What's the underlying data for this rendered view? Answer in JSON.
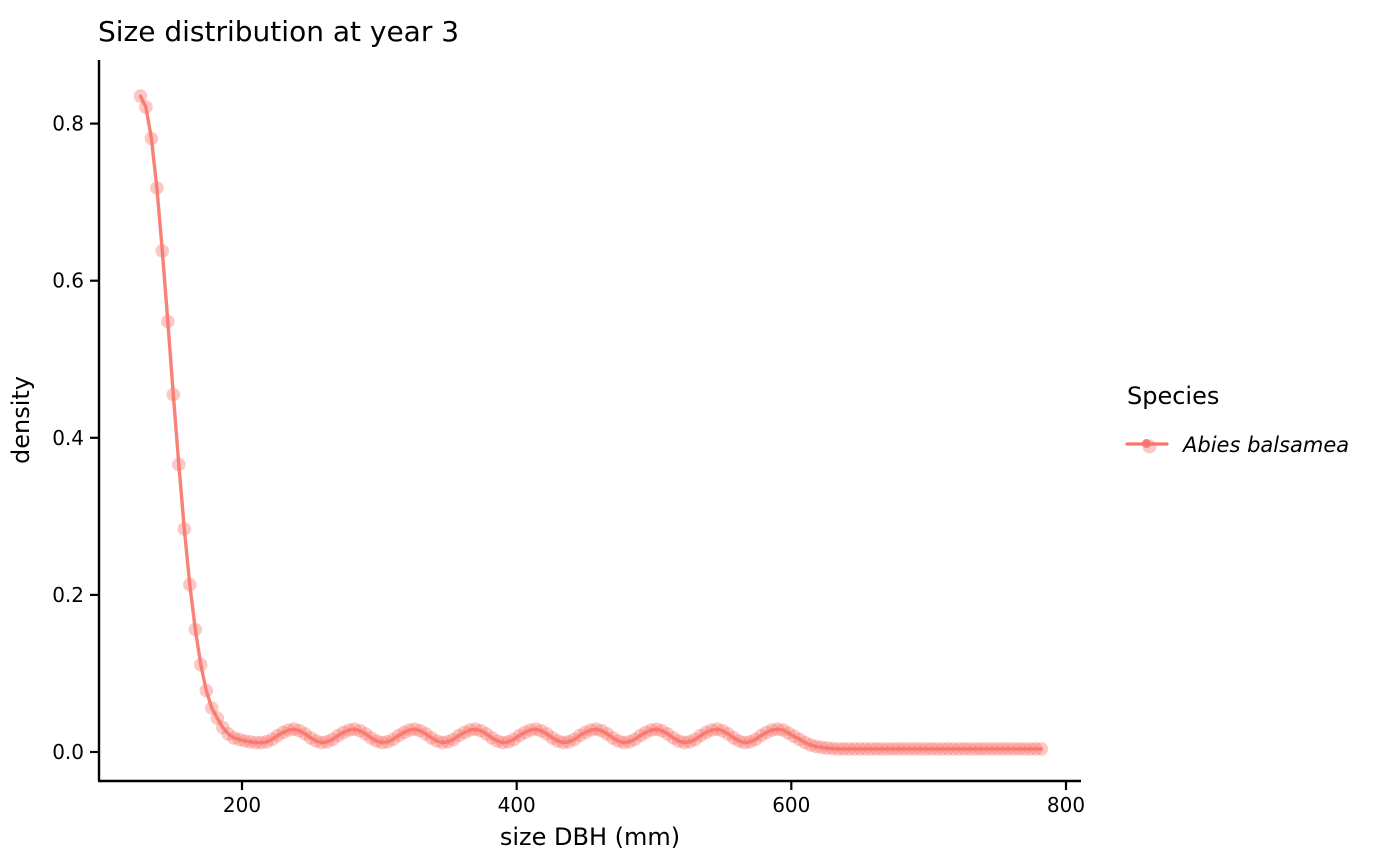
{
  "title": "Size distribution at year 3",
  "legend": {
    "title": "Species",
    "items": [
      {
        "label": "Abies balsamea",
        "color": "#F8766D"
      }
    ]
  },
  "colors": {
    "series": "#F8766D",
    "text": "#000000",
    "axis": "#000000",
    "background": "#FFFFFF"
  },
  "chart_data": {
    "type": "line",
    "title": "Size distribution at year 3",
    "xlabel": "size DBH (mm)",
    "ylabel": "density",
    "xlim": [
      95,
      810
    ],
    "ylim": [
      -0.04,
      0.875
    ],
    "x_ticks": [
      200,
      400,
      600,
      800
    ],
    "x_tick_labels": [
      "200",
      "400",
      "600",
      "800"
    ],
    "y_ticks": [
      0,
      0.2,
      0.4,
      0.6,
      0.8
    ],
    "y_tick_labels": [
      "0.0",
      "0.2",
      "0.4",
      "0.6",
      "0.8"
    ],
    "grid": false,
    "legend_position": "right",
    "legend_title": "Species",
    "series": [
      {
        "name": "Abies balsamea",
        "color": "#F8766D",
        "marker": "circle",
        "marker_opacity": 0.4,
        "points": [
          [
            126,
            0.835
          ],
          [
            130,
            0.821
          ],
          [
            134,
            0.781
          ],
          [
            138,
            0.718
          ],
          [
            142,
            0.638
          ],
          [
            146,
            0.548
          ],
          [
            150,
            0.455
          ],
          [
            154,
            0.366
          ],
          [
            158,
            0.284
          ],
          [
            162,
            0.213
          ],
          [
            166,
            0.156
          ],
          [
            170,
            0.111
          ],
          [
            174,
            0.078
          ],
          [
            178,
            0.056
          ],
          [
            182,
            0.043
          ],
          [
            186,
            0.031
          ],
          [
            190,
            0.023
          ],
          [
            194,
            0.018
          ],
          [
            198,
            0.016
          ],
          [
            202,
            0.014
          ],
          [
            206,
            0.013
          ],
          [
            210,
            0.012
          ],
          [
            214,
            0.012
          ],
          [
            218,
            0.013
          ],
          [
            222,
            0.016
          ],
          [
            226,
            0.021
          ],
          [
            230,
            0.025
          ],
          [
            234,
            0.028
          ],
          [
            238,
            0.029
          ],
          [
            242,
            0.027
          ],
          [
            246,
            0.023
          ],
          [
            250,
            0.018
          ],
          [
            254,
            0.014
          ],
          [
            258,
            0.012
          ],
          [
            262,
            0.013
          ],
          [
            266,
            0.016
          ],
          [
            270,
            0.021
          ],
          [
            274,
            0.025
          ],
          [
            278,
            0.028
          ],
          [
            282,
            0.029
          ],
          [
            286,
            0.027
          ],
          [
            290,
            0.023
          ],
          [
            294,
            0.018
          ],
          [
            298,
            0.014
          ],
          [
            302,
            0.012
          ],
          [
            306,
            0.013
          ],
          [
            310,
            0.016
          ],
          [
            314,
            0.021
          ],
          [
            318,
            0.025
          ],
          [
            322,
            0.028
          ],
          [
            326,
            0.029
          ],
          [
            330,
            0.027
          ],
          [
            334,
            0.023
          ],
          [
            338,
            0.018
          ],
          [
            342,
            0.014
          ],
          [
            346,
            0.012
          ],
          [
            350,
            0.013
          ],
          [
            354,
            0.016
          ],
          [
            358,
            0.021
          ],
          [
            362,
            0.025
          ],
          [
            366,
            0.028
          ],
          [
            370,
            0.029
          ],
          [
            374,
            0.027
          ],
          [
            378,
            0.023
          ],
          [
            382,
            0.018
          ],
          [
            386,
            0.014
          ],
          [
            390,
            0.012
          ],
          [
            394,
            0.013
          ],
          [
            398,
            0.016
          ],
          [
            402,
            0.021
          ],
          [
            406,
            0.025
          ],
          [
            410,
            0.028
          ],
          [
            414,
            0.029
          ],
          [
            418,
            0.027
          ],
          [
            422,
            0.023
          ],
          [
            426,
            0.018
          ],
          [
            430,
            0.014
          ],
          [
            434,
            0.012
          ],
          [
            438,
            0.013
          ],
          [
            442,
            0.016
          ],
          [
            446,
            0.021
          ],
          [
            450,
            0.025
          ],
          [
            454,
            0.028
          ],
          [
            458,
            0.029
          ],
          [
            462,
            0.027
          ],
          [
            466,
            0.023
          ],
          [
            470,
            0.018
          ],
          [
            474,
            0.014
          ],
          [
            478,
            0.012
          ],
          [
            482,
            0.013
          ],
          [
            486,
            0.016
          ],
          [
            490,
            0.021
          ],
          [
            494,
            0.025
          ],
          [
            498,
            0.028
          ],
          [
            502,
            0.029
          ],
          [
            506,
            0.027
          ],
          [
            510,
            0.023
          ],
          [
            514,
            0.018
          ],
          [
            518,
            0.014
          ],
          [
            522,
            0.012
          ],
          [
            526,
            0.013
          ],
          [
            530,
            0.016
          ],
          [
            534,
            0.021
          ],
          [
            538,
            0.025
          ],
          [
            542,
            0.028
          ],
          [
            546,
            0.029
          ],
          [
            550,
            0.027
          ],
          [
            554,
            0.023
          ],
          [
            558,
            0.018
          ],
          [
            562,
            0.014
          ],
          [
            566,
            0.012
          ],
          [
            570,
            0.013
          ],
          [
            574,
            0.016
          ],
          [
            578,
            0.021
          ],
          [
            582,
            0.025
          ],
          [
            586,
            0.028
          ],
          [
            590,
            0.029
          ],
          [
            594,
            0.028
          ],
          [
            598,
            0.024
          ],
          [
            602,
            0.02
          ],
          [
            606,
            0.016
          ],
          [
            610,
            0.012
          ],
          [
            614,
            0.009
          ],
          [
            618,
            0.007
          ],
          [
            622,
            0.006
          ],
          [
            626,
            0.005
          ],
          [
            630,
            0.0045
          ],
          [
            634,
            0.004
          ],
          [
            638,
            0.004
          ],
          [
            642,
            0.004
          ],
          [
            646,
            0.004
          ],
          [
            650,
            0.004
          ],
          [
            654,
            0.004
          ],
          [
            658,
            0.004
          ],
          [
            662,
            0.004
          ],
          [
            666,
            0.004
          ],
          [
            670,
            0.004
          ],
          [
            674,
            0.004
          ],
          [
            678,
            0.004
          ],
          [
            682,
            0.004
          ],
          [
            686,
            0.004
          ],
          [
            690,
            0.004
          ],
          [
            694,
            0.004
          ],
          [
            698,
            0.004
          ],
          [
            702,
            0.004
          ],
          [
            706,
            0.004
          ],
          [
            710,
            0.004
          ],
          [
            714,
            0.004
          ],
          [
            718,
            0.004
          ],
          [
            722,
            0.004
          ],
          [
            726,
            0.004
          ],
          [
            730,
            0.004
          ],
          [
            734,
            0.004
          ],
          [
            738,
            0.004
          ],
          [
            742,
            0.004
          ],
          [
            746,
            0.004
          ],
          [
            750,
            0.004
          ],
          [
            754,
            0.004
          ],
          [
            758,
            0.004
          ],
          [
            762,
            0.004
          ],
          [
            766,
            0.004
          ],
          [
            770,
            0.004
          ],
          [
            774,
            0.004
          ],
          [
            778,
            0.004
          ],
          [
            782,
            0.004
          ]
        ]
      }
    ]
  }
}
